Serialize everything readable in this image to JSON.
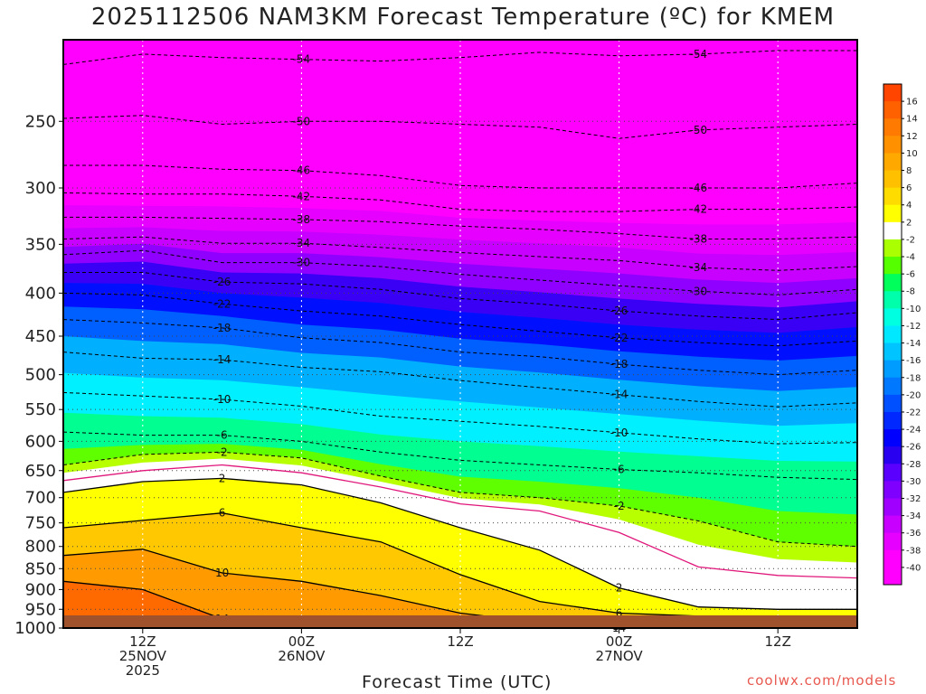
{
  "chart_data": {
    "type": "heatmap",
    "title": "2025112506 NAM3KM Forecast Temperature (ºC) for KMEM",
    "xlabel": "Forecast Time (UTC)",
    "ylabel": "",
    "credit": "coolwx.com/models",
    "x_range_hours": [
      0,
      60
    ],
    "y_axis": {
      "scale": "pressure",
      "range": [
        1000,
        200
      ],
      "ticks": [
        250,
        300,
        350,
        400,
        450,
        500,
        550,
        600,
        650,
        700,
        750,
        800,
        850,
        900,
        950,
        1000
      ]
    },
    "x_ticks": [
      {
        "hour": 6,
        "lines": [
          "12Z",
          "25NOV",
          "2025"
        ]
      },
      {
        "hour": 18,
        "lines": [
          "00Z",
          "26NOV"
        ]
      },
      {
        "hour": 30,
        "lines": [
          "12Z"
        ]
      },
      {
        "hour": 42,
        "lines": [
          "00Z",
          "27NOV"
        ]
      },
      {
        "hour": 54,
        "lines": [
          "12Z"
        ]
      }
    ],
    "colorbar": {
      "labels": [
        "16",
        "14",
        "12",
        "10",
        "8",
        "6",
        "4",
        "2",
        "-2",
        "-4",
        "-6",
        "-8",
        "-10",
        "-12",
        "-14",
        "-16",
        "-18",
        "-20",
        "-22",
        "-24",
        "-26",
        "-28",
        "-30",
        "-32",
        "-34",
        "-36",
        "-38",
        "-40"
      ],
      "colors": [
        "#ff4500",
        "#ff6000",
        "#ff7a00",
        "#ff9000",
        "#ffa800",
        "#ffc000",
        "#ffdc00",
        "#ffff00",
        "#ffffff",
        "#aaff00",
        "#55ff00",
        "#00ff5a",
        "#00ffaa",
        "#00ffe0",
        "#00e8ff",
        "#00c4ff",
        "#009cff",
        "#0078ff",
        "#0050ff",
        "#0028ff",
        "#0000ff",
        "#2a00f0",
        "#5a00ff",
        "#8000ff",
        "#a000ff",
        "#c800ff",
        "#e600ff",
        "#ff00ff",
        "#ff00ff"
      ]
    },
    "isotherms": [
      {
        "value": -54,
        "points": [
          [
            0,
            214
          ],
          [
            6,
            208
          ],
          [
            12,
            210
          ],
          [
            18,
            211
          ],
          [
            24,
            212
          ],
          [
            30,
            210
          ],
          [
            36,
            207
          ],
          [
            42,
            209
          ],
          [
            48,
            208
          ],
          [
            54,
            206
          ],
          [
            60,
            206
          ]
        ]
      },
      {
        "value": -50,
        "points": [
          [
            0,
            248
          ],
          [
            6,
            246
          ],
          [
            12,
            252
          ],
          [
            18,
            250
          ],
          [
            24,
            250
          ],
          [
            30,
            252
          ],
          [
            36,
            254
          ],
          [
            42,
            262
          ],
          [
            48,
            256
          ],
          [
            54,
            254
          ],
          [
            60,
            252
          ]
        ]
      },
      {
        "value": -46,
        "points": [
          [
            0,
            282
          ],
          [
            6,
            282
          ],
          [
            12,
            285
          ],
          [
            18,
            286
          ],
          [
            24,
            290
          ],
          [
            30,
            298
          ],
          [
            36,
            300
          ],
          [
            42,
            300
          ],
          [
            48,
            300
          ],
          [
            54,
            300
          ],
          [
            60,
            296
          ]
        ]
      },
      {
        "value": -42,
        "points": [
          [
            0,
            304
          ],
          [
            6,
            305
          ],
          [
            12,
            305
          ],
          [
            18,
            307
          ],
          [
            24,
            310
          ],
          [
            30,
            318
          ],
          [
            36,
            320
          ],
          [
            42,
            320
          ],
          [
            48,
            318
          ],
          [
            54,
            318
          ],
          [
            60,
            316
          ]
        ]
      },
      {
        "value": -38,
        "points": [
          [
            0,
            325
          ],
          [
            6,
            325
          ],
          [
            12,
            326
          ],
          [
            18,
            327
          ],
          [
            24,
            329
          ],
          [
            30,
            333
          ],
          [
            36,
            336
          ],
          [
            42,
            340
          ],
          [
            48,
            345
          ],
          [
            54,
            345
          ],
          [
            60,
            343
          ]
        ]
      },
      {
        "value": -34,
        "points": [
          [
            0,
            345
          ],
          [
            6,
            343
          ],
          [
            12,
            349
          ],
          [
            18,
            349
          ],
          [
            24,
            353
          ],
          [
            30,
            358
          ],
          [
            36,
            362
          ],
          [
            42,
            366
          ],
          [
            48,
            373
          ],
          [
            54,
            376
          ],
          [
            60,
            372
          ]
        ]
      },
      {
        "value": -30,
        "points": [
          [
            0,
            360
          ],
          [
            6,
            356
          ],
          [
            12,
            368
          ],
          [
            18,
            368
          ],
          [
            24,
            372
          ],
          [
            30,
            380
          ],
          [
            36,
            386
          ],
          [
            42,
            392
          ],
          [
            48,
            398
          ],
          [
            54,
            402
          ],
          [
            60,
            396
          ]
        ]
      },
      {
        "value": -26,
        "points": [
          [
            0,
            378
          ],
          [
            6,
            378
          ],
          [
            12,
            388
          ],
          [
            18,
            390
          ],
          [
            24,
            396
          ],
          [
            30,
            406
          ],
          [
            36,
            412
          ],
          [
            42,
            420
          ],
          [
            48,
            426
          ],
          [
            54,
            430
          ],
          [
            60,
            422
          ]
        ]
      },
      {
        "value": -22,
        "points": [
          [
            0,
            400
          ],
          [
            6,
            402
          ],
          [
            12,
            412
          ],
          [
            18,
            420
          ],
          [
            24,
            426
          ],
          [
            30,
            436
          ],
          [
            36,
            444
          ],
          [
            42,
            452
          ],
          [
            48,
            458
          ],
          [
            54,
            462
          ],
          [
            60,
            456
          ]
        ]
      },
      {
        "value": -18,
        "points": [
          [
            0,
            430
          ],
          [
            6,
            434
          ],
          [
            12,
            440
          ],
          [
            18,
            452
          ],
          [
            24,
            458
          ],
          [
            30,
            470
          ],
          [
            36,
            476
          ],
          [
            42,
            486
          ],
          [
            48,
            494
          ],
          [
            54,
            500
          ],
          [
            60,
            494
          ]
        ]
      },
      {
        "value": -14,
        "points": [
          [
            0,
            470
          ],
          [
            6,
            478
          ],
          [
            12,
            480
          ],
          [
            18,
            490
          ],
          [
            24,
            496
          ],
          [
            30,
            508
          ],
          [
            36,
            518
          ],
          [
            42,
            528
          ],
          [
            48,
            538
          ],
          [
            54,
            546
          ],
          [
            60,
            540
          ]
        ]
      },
      {
        "value": -10,
        "points": [
          [
            0,
            525
          ],
          [
            6,
            530
          ],
          [
            12,
            535
          ],
          [
            18,
            545
          ],
          [
            24,
            560
          ],
          [
            30,
            568
          ],
          [
            36,
            576
          ],
          [
            42,
            586
          ],
          [
            48,
            596
          ],
          [
            54,
            604
          ],
          [
            60,
            602
          ]
        ]
      },
      {
        "value": -6,
        "points": [
          [
            0,
            585
          ],
          [
            6,
            590
          ],
          [
            12,
            590
          ],
          [
            18,
            600
          ],
          [
            24,
            618
          ],
          [
            30,
            632
          ],
          [
            36,
            640
          ],
          [
            42,
            648
          ],
          [
            48,
            654
          ],
          [
            54,
            662
          ],
          [
            60,
            666
          ]
        ]
      },
      {
        "value": -2,
        "points": [
          [
            0,
            640
          ],
          [
            6,
            622
          ],
          [
            12,
            618
          ],
          [
            18,
            628
          ],
          [
            24,
            660
          ],
          [
            30,
            690
          ],
          [
            36,
            700
          ],
          [
            42,
            716
          ],
          [
            48,
            746
          ],
          [
            54,
            790
          ],
          [
            60,
            800
          ]
        ]
      },
      {
        "value": 0,
        "points": [
          [
            0,
            668
          ],
          [
            6,
            650
          ],
          [
            12,
            640
          ],
          [
            18,
            654
          ],
          [
            24,
            680
          ],
          [
            30,
            712
          ],
          [
            36,
            726
          ],
          [
            42,
            770
          ],
          [
            48,
            846
          ],
          [
            54,
            866
          ],
          [
            60,
            872
          ]
        ]
      },
      {
        "value": 2,
        "points": [
          [
            0,
            690
          ],
          [
            6,
            670
          ],
          [
            12,
            664
          ],
          [
            18,
            676
          ],
          [
            24,
            710
          ],
          [
            30,
            760
          ],
          [
            36,
            808
          ],
          [
            42,
            896
          ],
          [
            48,
            944
          ],
          [
            54,
            950
          ],
          [
            60,
            950
          ]
        ]
      },
      {
        "value": 6,
        "points": [
          [
            0,
            760
          ],
          [
            6,
            745
          ],
          [
            12,
            730
          ],
          [
            18,
            760
          ],
          [
            24,
            790
          ],
          [
            30,
            864
          ],
          [
            36,
            930
          ],
          [
            42,
            960
          ],
          [
            48,
            968
          ],
          [
            54,
            972
          ],
          [
            60,
            972
          ]
        ]
      },
      {
        "value": 10,
        "points": [
          [
            0,
            820
          ],
          [
            6,
            806
          ],
          [
            12,
            860
          ],
          [
            18,
            880
          ],
          [
            24,
            915
          ],
          [
            30,
            960
          ],
          [
            36,
            985
          ],
          [
            42,
            995
          ],
          [
            48,
            1000
          ],
          [
            54,
            1000
          ],
          [
            60,
            1000
          ]
        ]
      },
      {
        "value": 14,
        "points": [
          [
            0,
            880
          ],
          [
            6,
            900
          ],
          [
            12,
            975
          ],
          [
            18,
            980
          ],
          [
            24,
            990
          ],
          [
            30,
            1000
          ],
          [
            36,
            1000
          ],
          [
            42,
            1000
          ],
          [
            48,
            1000
          ],
          [
            54,
            1000
          ],
          [
            60,
            1000
          ]
        ]
      }
    ],
    "grid": true,
    "legend": "colorbar-right"
  }
}
